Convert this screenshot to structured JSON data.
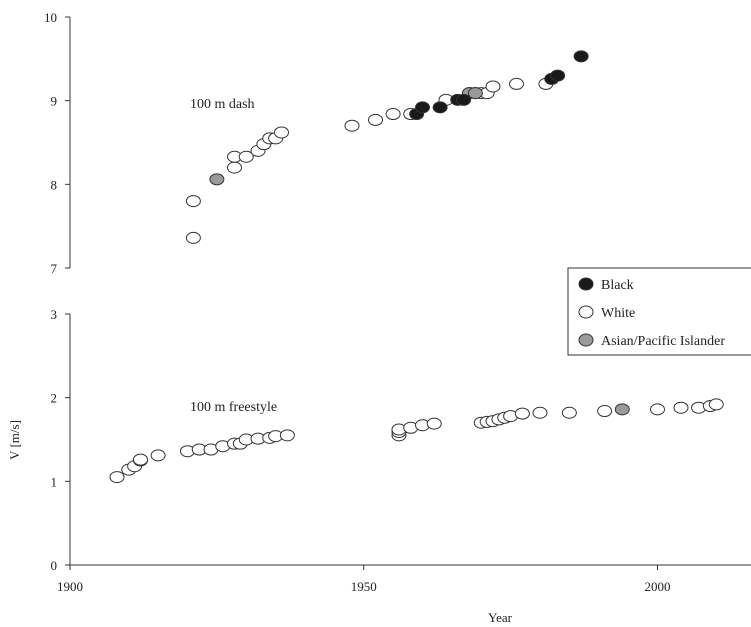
{
  "chart_data": {
    "type": "scatter",
    "xlabel": "Year",
    "ylabel": "V [m/s]",
    "xlim": [
      1900,
      2020
    ],
    "x_ticks": [
      1900,
      1950,
      2000
    ],
    "grid": false,
    "legend_position": "right",
    "legend": [
      {
        "key": "black",
        "label": "Black",
        "color": "#1a1a1a"
      },
      {
        "key": "white",
        "label": "White",
        "color": "#ffffff"
      },
      {
        "key": "asian",
        "label": "Asian/Pacific Islander",
        "color": "#9a9a9a"
      }
    ],
    "panels": [
      {
        "label": "100 m dash",
        "ylim": [
          7,
          10
        ],
        "y_ticks": [
          7,
          8,
          9,
          10
        ],
        "series": [
          {
            "group": "white",
            "points": [
              [
                1921,
                7.36
              ],
              [
                1921,
                7.8
              ],
              [
                1928,
                8.2
              ],
              [
                1928,
                8.33
              ],
              [
                1930,
                8.33
              ],
              [
                1932,
                8.4
              ],
              [
                1933,
                8.48
              ],
              [
                1934,
                8.55
              ],
              [
                1935,
                8.55
              ],
              [
                1936,
                8.62
              ],
              [
                1948,
                8.7
              ],
              [
                1952,
                8.77
              ],
              [
                1955,
                8.84
              ],
              [
                1958,
                8.84
              ],
              [
                1964,
                9.01
              ],
              [
                1968,
                9.09
              ],
              [
                1969,
                9.09
              ],
              [
                1970,
                9.09
              ],
              [
                1971,
                9.09
              ],
              [
                1972,
                9.17
              ],
              [
                1976,
                9.2
              ],
              [
                1981,
                9.2
              ]
            ]
          },
          {
            "group": "asian",
            "points": [
              [
                1925,
                8.06
              ],
              [
                1968,
                9.09
              ],
              [
                1969,
                9.09
              ]
            ]
          },
          {
            "group": "black",
            "points": [
              [
                1959,
                8.84
              ],
              [
                1960,
                8.92
              ],
              [
                1963,
                8.92
              ],
              [
                1966,
                9.01
              ],
              [
                1967,
                9.01
              ],
              [
                1982,
                9.26
              ],
              [
                1983,
                9.3
              ],
              [
                1987,
                9.53
              ]
            ]
          }
        ]
      },
      {
        "label": "100 m freestyle",
        "ylim": [
          0,
          3
        ],
        "y_ticks": [
          0,
          1,
          2,
          3
        ],
        "series": [
          {
            "group": "white",
            "points": [
              [
                1908,
                1.05
              ],
              [
                1910,
                1.14
              ],
              [
                1911,
                1.18
              ],
              [
                1912,
                1.25
              ],
              [
                1912,
                1.26
              ],
              [
                1915,
                1.31
              ],
              [
                1920,
                1.36
              ],
              [
                1922,
                1.38
              ],
              [
                1924,
                1.38
              ],
              [
                1926,
                1.42
              ],
              [
                1928,
                1.45
              ],
              [
                1929,
                1.45
              ],
              [
                1930,
                1.5
              ],
              [
                1932,
                1.51
              ],
              [
                1934,
                1.52
              ],
              [
                1935,
                1.54
              ],
              [
                1937,
                1.55
              ],
              [
                1956,
                1.55
              ],
              [
                1956,
                1.59
              ],
              [
                1956,
                1.62
              ],
              [
                1958,
                1.64
              ],
              [
                1960,
                1.67
              ],
              [
                1962,
                1.69
              ],
              [
                1970,
                1.7
              ],
              [
                1971,
                1.71
              ],
              [
                1972,
                1.72
              ],
              [
                1973,
                1.74
              ],
              [
                1974,
                1.76
              ],
              [
                1975,
                1.78
              ],
              [
                1977,
                1.81
              ],
              [
                1980,
                1.82
              ],
              [
                1985,
                1.82
              ],
              [
                1991,
                1.84
              ],
              [
                2000,
                1.86
              ],
              [
                2004,
                1.88
              ],
              [
                2007,
                1.88
              ],
              [
                2009,
                1.9
              ],
              [
                2010,
                1.92
              ]
            ]
          },
          {
            "group": "asian",
            "points": [
              [
                1994,
                1.86
              ]
            ]
          }
        ]
      }
    ]
  }
}
